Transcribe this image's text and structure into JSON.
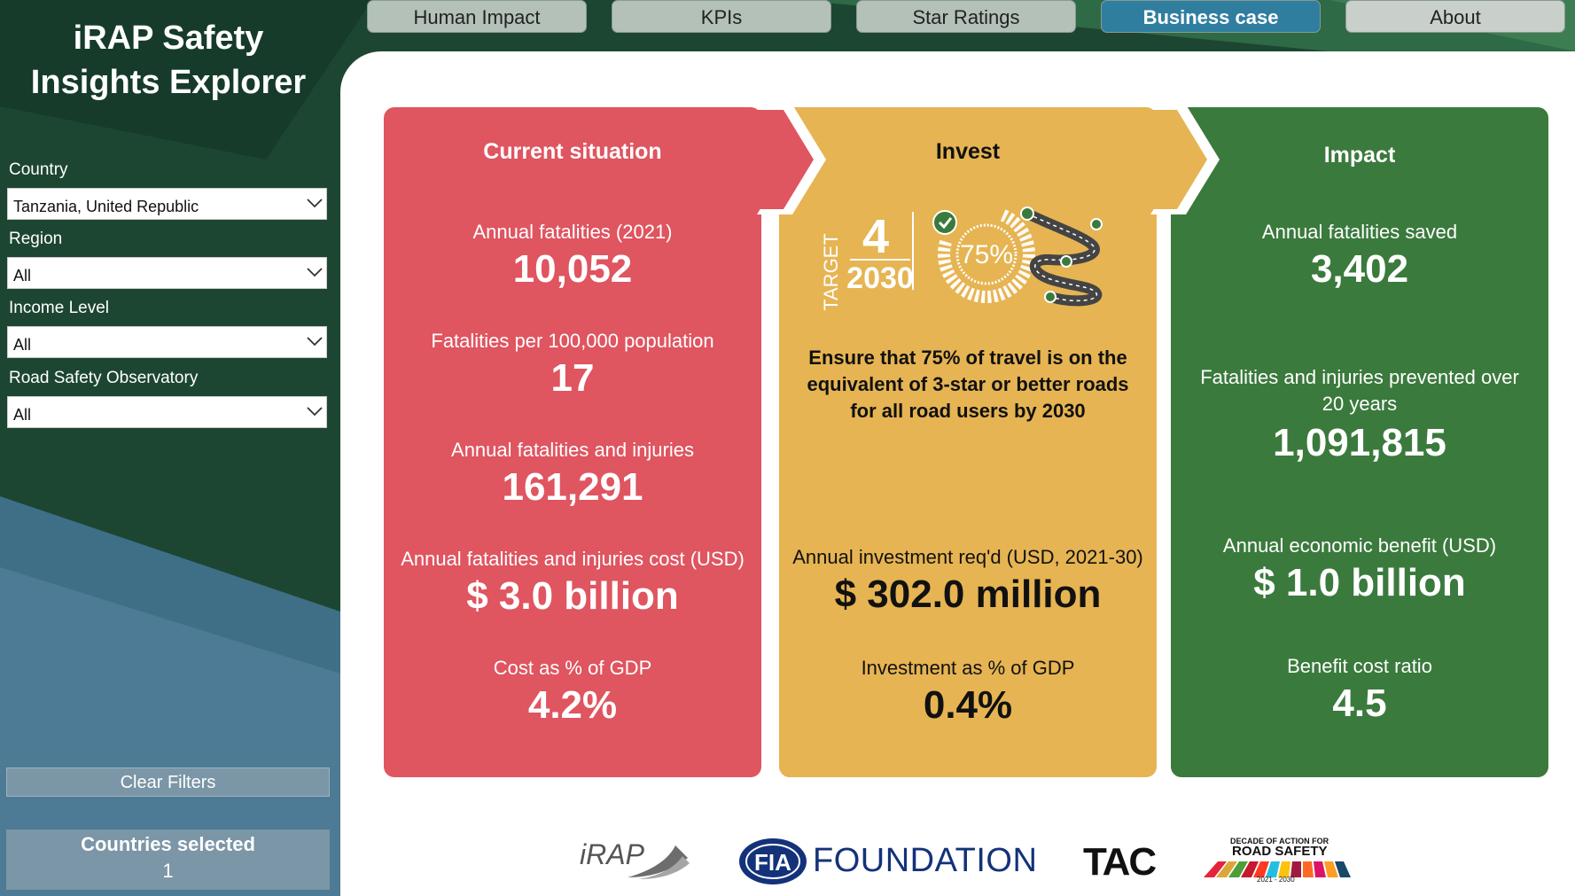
{
  "app": {
    "title_line1": "iRAP Safety",
    "title_line2": "Insights Explorer"
  },
  "tabs": [
    {
      "label": "Human Impact",
      "active": false
    },
    {
      "label": "KPIs",
      "active": false
    },
    {
      "label": "Star Ratings",
      "active": false
    },
    {
      "label": "Business case",
      "active": true
    },
    {
      "label": "About",
      "active": false
    }
  ],
  "filters": {
    "country": {
      "label": "Country",
      "value": "Tanzania, United Republic"
    },
    "region": {
      "label": "Region",
      "value": "All"
    },
    "income": {
      "label": "Income Level",
      "value": "All"
    },
    "observatory": {
      "label": "Road Safety Observatory",
      "value": "All"
    }
  },
  "clear_filters": "Clear Filters",
  "countries_selected": {
    "label": "Countries selected",
    "value": "1"
  },
  "current": {
    "title": "Current situation",
    "m1_label": "Annual fatalities (2021)",
    "m1_value": "10,052",
    "m2_label": "Fatalities per 100,000 population",
    "m2_value": "17",
    "m3_label": "Annual fatalities and injuries",
    "m3_value": "161,291",
    "m4_label": "Annual fatalities and injuries cost (USD)",
    "m4_value": "$ 3.0 billion",
    "m5_label": "Cost as % of GDP",
    "m5_value": "4.2%"
  },
  "invest": {
    "title": "Invest",
    "target_word": "TARGET",
    "target_number": "4",
    "target_year": "2030",
    "percent": "75%",
    "statement": "Ensure that 75% of travel is on the equivalent of 3-star or better roads for all road users by 2030",
    "m1_label": "Annual investment req'd (USD, 2021-30)",
    "m1_value": "$ 302.0 million",
    "m2_label": "Investment as % of GDP",
    "m2_value": "0.4%"
  },
  "impact": {
    "title": "Impact",
    "m1_label": "Annual fatalities saved",
    "m1_value": "3,402",
    "m2_label": "Fatalities and injuries prevented over 20 years",
    "m2_value": "1,091,815",
    "m3_label": "Annual economic benefit (USD)",
    "m3_value": "$ 1.0 billion",
    "m4_label": "Benefit cost ratio",
    "m4_value": "4.5"
  },
  "logos": {
    "irap": "iRAP",
    "fia": "FOUNDATION",
    "fia_badge": "FIA",
    "tac": "TAC",
    "decade_small": "DECADE OF ACTION FOR",
    "decade_big": "ROAD SAFETY",
    "decade_years": "2021 - 2030"
  },
  "colors": {
    "red_card": "#df5560",
    "yellow_card": "#e6b452",
    "green_card": "#3b7a3d",
    "active_tab": "#2f7ea0",
    "sidebar_dark": "#1f4a37"
  }
}
